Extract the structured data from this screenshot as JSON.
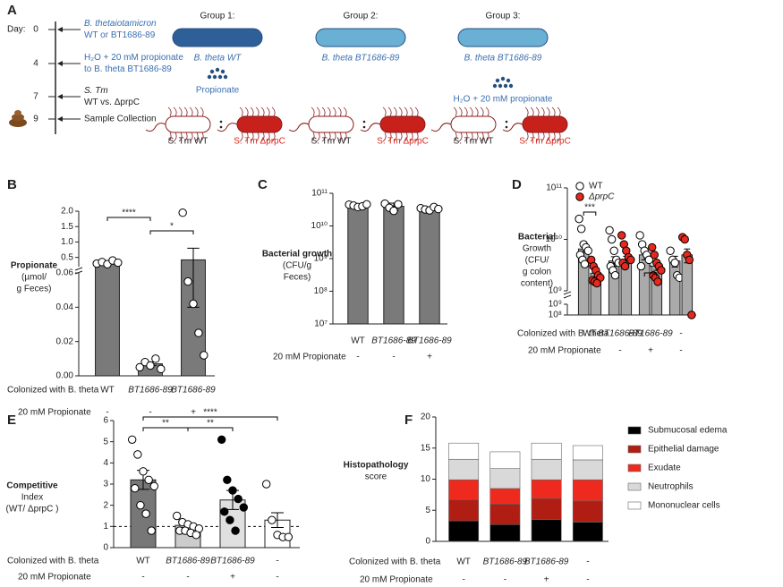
{
  "diagram": {
    "panel": "A",
    "day_label": "Day:",
    "days": [
      "0",
      "4",
      "7",
      "9"
    ],
    "events": [
      [
        "B. thetaiotamicron",
        "WT or BT1686-89"
      ],
      [
        "H₂O + 20 mM propionate",
        "to B. theta BT1686-89"
      ],
      [
        "S. Tm",
        "WT vs. ΔprpC"
      ],
      [
        "Sample Collection"
      ]
    ],
    "groups": [
      {
        "title": "Group 1:",
        "strain": "B. theta WT",
        "treatment": "Propionate",
        "left": "S. Tm WT",
        "right": "S. Tm ΔprpC"
      },
      {
        "title": "Group 2:",
        "strain": "B. theta BT1686-89",
        "left": "S. Tm WT",
        "right": "S. Tm ΔprpC"
      },
      {
        "title": "Group 3:",
        "strain": "B. theta BT1686-89",
        "treatment": "H₂O + 20 mM propionate",
        "left": "S. Tm WT",
        "right": "S. Tm ΔprpC"
      }
    ]
  },
  "chart_data": [
    {
      "type": "bar",
      "panel": "B",
      "ylabel": [
        "Propionate",
        "(µmol/",
        "g Feces)"
      ],
      "category_label": "Colonized with B. theta",
      "propionate_label": "20 mM Propionate",
      "categories": [
        "WT",
        "BT1686-89",
        "BT1686-89"
      ],
      "propionate": [
        "-",
        "-",
        "+"
      ],
      "segments": [
        {
          "ylim": [
            0,
            0.06
          ],
          "yticks": [
            {
              "value": 0,
              "label": "0.00"
            },
            0.02,
            0.04,
            0.06
          ]
        },
        {
          "ylim": [
            0.2,
            2.0
          ],
          "yticks": [
            0.5,
            {
              "value": 1,
              "label": "1.0"
            },
            1.5,
            {
              "value": 2,
              "label": "2.0"
            }
          ]
        }
      ],
      "colors": [
        "#7a7a7a",
        "#7a7a7a",
        "#7a7a7a"
      ],
      "point_fill": [
        "#fff",
        "#fff",
        "#fff"
      ],
      "values": [
        0.33,
        0.007,
        0.42
      ],
      "errors": [
        0.02,
        0.001,
        0.38
      ],
      "points": [
        [
          0.3,
          0.35,
          0.28,
          0.4,
          0.33
        ],
        [
          0.005,
          0.008,
          0.006,
          0.01,
          0.004
        ],
        [
          1.95,
          0.055,
          0.042,
          0.025,
          0.012
        ]
      ],
      "significance": [
        {
          "from": 0,
          "to": 1,
          "label": "****"
        },
        {
          "from": 1,
          "to": 2,
          "label": "*"
        }
      ]
    },
    {
      "type": "bar",
      "panel": "C",
      "ylabel": [
        "Bacterial growth",
        "(CFU/g",
        "Feces)"
      ],
      "log": true,
      "propionate_label": "20 mM Propionate",
      "categories": [
        "WT",
        "BT1686-89",
        "BT1686-89"
      ],
      "propionate": [
        "-",
        "-",
        "+"
      ],
      "ylim": [
        10000000.0,
        100000000000.0
      ],
      "yticks": [
        {
          "value": 10000000.0,
          "label": "10⁷"
        },
        {
          "value": 100000000.0,
          "label": "10⁸"
        },
        {
          "value": 1000000000.0,
          "label": "10⁹"
        },
        {
          "value": 10000000000.0,
          "label": "10¹⁰"
        },
        {
          "value": 100000000000.0,
          "label": "10¹¹"
        }
      ],
      "colors": [
        "#7a7a7a",
        "#7a7a7a",
        "#7a7a7a"
      ],
      "point_fill": [
        "#fff",
        "#fff",
        "#fff"
      ],
      "values": [
        42000000000.0,
        40000000000.0,
        34000000000.0
      ],
      "errors": [
        3000000000.0,
        10000000000.0,
        3000000000.0
      ],
      "points": [
        [
          45000000000.0,
          42000000000.0,
          38000000000.0,
          40000000000.0,
          46000000000.0
        ],
        [
          48000000000.0,
          36000000000.0,
          29000000000.0,
          46000000000.0
        ],
        [
          35000000000.0,
          32000000000.0,
          30000000000.0,
          38000000000.0,
          33000000000.0
        ]
      ]
    },
    {
      "type": "grouped_bar",
      "panel": "D",
      "ylabel": [
        "Bacterial",
        "Growth",
        "(CFU/",
        "g colon",
        "content)"
      ],
      "log": true,
      "category_label": "Colonized with B. theta",
      "propionate_label": "20 mM Propionate",
      "categories": [
        "WT",
        "BT1686-89",
        "BT1686-89",
        "-"
      ],
      "propionate": [
        "-",
        "-",
        "+",
        "-"
      ],
      "segments": [
        {
          "ylim": [
            100000000.0,
            1000000000.0
          ],
          "yticks": [
            {
              "value": 100000000.0,
              "label": "10⁸"
            },
            {
              "value": 1000000000.0,
              "label": "10⁹"
            }
          ]
        },
        {
          "ylim": [
            1000000000.0,
            100000000000.0
          ],
          "yticks": [
            {
              "value": 1000000000.0,
              "label": "10⁹"
            },
            {
              "value": 10000000000.0,
              "label": "10¹⁰"
            },
            {
              "value": 100000000000.0,
              "label": "10¹¹"
            }
          ]
        }
      ],
      "series": [
        {
          "name": "WT",
          "color": "#aaaaaa",
          "marker": "#ffffff",
          "values": [
            6500000000.0,
            3800000000.0,
            5000000000.0,
            3800000000.0
          ],
          "errors": [
            2500000000.0,
            800000000.0,
            1000000000.0,
            900000000.0
          ],
          "points": [
            [
              25000000000.0,
              16000000000.0,
              8000000000.0,
              7000000000.0,
              6000000000.0,
              5000000000.0,
              4000000000.0,
              3300000000.0
            ],
            [
              15000000000.0,
              10000000000.0,
              6000000000.0,
              4000000000.0,
              3500000000.0,
              3000000000.0,
              2500000000.0,
              2000000000.0
            ],
            [
              12000000000.0,
              8000000000.0,
              6000000000.0,
              5000000000.0,
              4000000000.0,
              3000000000.0
            ],
            [
              6000000000.0,
              4000000000.0,
              3500000000.0,
              2000000000.0,
              1800000000.0
            ]
          ]
        },
        {
          "name": "ΔprpC",
          "color": "#aaaaaa",
          "marker": "#e8281c",
          "values": [
            2200000000.0,
            4000000000.0,
            3000000000.0,
            5000000000.0
          ],
          "errors": [
            300000000.0,
            700000000.0,
            500000000.0,
            1500000000.0
          ],
          "points": [
            [
              4000000000.0,
              3000000000.0,
              2500000000.0,
              2000000000.0,
              1800000000.0,
              1600000000.0,
              1500000000.0,
              1400000000.0
            ],
            [
              12000000000.0,
              8000000000.0,
              6000000000.0,
              4500000000.0,
              4000000000.0,
              3500000000.0,
              3000000000.0
            ],
            [
              7000000000.0,
              5000000000.0,
              3500000000.0,
              3000000000.0,
              2500000000.0,
              2000000000.0,
              1800000000.0,
              1500000000.0
            ],
            [
              11000000000.0,
              10000000000.0,
              5000000000.0,
              4000000000.0,
              100000000.0
            ]
          ]
        }
      ],
      "significance": [
        {
          "group": 0,
          "label": "***"
        },
        {
          "group": 2,
          "label": "*"
        }
      ]
    },
    {
      "type": "bar",
      "panel": "E",
      "ylabel": [
        "Competitive",
        "Index",
        "(WT/ ΔprpC )"
      ],
      "category_label": "Colonized with B. theta",
      "propionate_label": "20 mM Propionate",
      "categories": [
        "WT",
        "BT1686-89",
        "BT1686-89",
        "-"
      ],
      "propionate": [
        "-",
        "-",
        "+",
        "-"
      ],
      "ylim": [
        0,
        6
      ],
      "yticks": [
        0,
        1,
        2,
        3,
        4,
        5,
        6
      ],
      "reference_line": 1,
      "colors": [
        "#777777",
        "#cccccc",
        "#e0e0e0",
        "#ffffff"
      ],
      "point_fill": [
        "#fff",
        "#fff",
        "#000",
        "#fff"
      ],
      "values": [
        3.2,
        1.05,
        2.25,
        1.3
      ],
      "errors": [
        0.45,
        0.1,
        0.45,
        0.35
      ],
      "points": [
        [
          5.1,
          4.4,
          3.6,
          3.2,
          2.9,
          2.8,
          2.0,
          1.6,
          0.8
        ],
        [
          1.5,
          1.2,
          1.1,
          1.0,
          0.9,
          0.8,
          0.8,
          0.7,
          0.6
        ],
        [
          5.1,
          3.2,
          2.7,
          2.3,
          1.9,
          1.7,
          1.3,
          0.8
        ],
        [
          3.0,
          1.3,
          0.6,
          0.5,
          0.5
        ]
      ],
      "significance": [
        {
          "from": 0,
          "to": 1,
          "label": "**"
        },
        {
          "from": 1,
          "to": 2,
          "label": "**"
        },
        {
          "from": 0,
          "to": 3,
          "label": "****"
        }
      ]
    },
    {
      "type": "stacked_bar",
      "panel": "F",
      "ylabel": [
        "Histopathology",
        "score"
      ],
      "category_label": "Colonized with B. theta",
      "propionate_label": "20 mM Propionate",
      "categories": [
        "WT",
        "BT1686-89",
        "BT1686-89",
        "-"
      ],
      "propionate": [
        "-",
        "-",
        "+",
        "-"
      ],
      "ylim": [
        0,
        20
      ],
      "yticks": [
        0,
        5,
        10,
        15,
        20
      ],
      "series": [
        {
          "name": "Submucosal edema",
          "color": "#000000",
          "values": [
            3.3,
            2.7,
            3.5,
            3.1
          ]
        },
        {
          "name": "Epithelial damage",
          "color": "#b01d12",
          "values": [
            3.4,
            3.3,
            3.4,
            3.4
          ]
        },
        {
          "name": "Exudate",
          "color": "#ee2a1e",
          "values": [
            3.2,
            2.5,
            3.0,
            3.4
          ]
        },
        {
          "name": "Neutrophils",
          "color": "#d9d9d9",
          "values": [
            3.3,
            3.2,
            3.3,
            3.2
          ]
        },
        {
          "name": "Mononuclear cells",
          "color": "#ffffff",
          "values": [
            2.6,
            2.7,
            2.6,
            2.3
          ]
        }
      ]
    }
  ]
}
